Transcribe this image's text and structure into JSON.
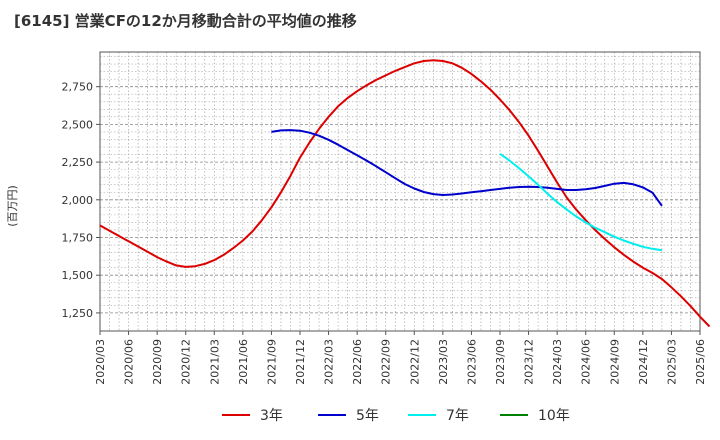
{
  "title": "[6145]  営業CFの12か月移動合計の平均値の推移",
  "y_unit_label": "(百万円)",
  "chart_data": {
    "type": "line",
    "title": "[6145]  営業CFの12か月移動合計の平均値の推移",
    "ylabel": "(百万円)",
    "xlabel": "",
    "ylim": [
      1130,
      2980
    ],
    "yticks": [
      1250,
      1500,
      1750,
      2000,
      2250,
      2500,
      2750
    ],
    "ytick_labels": [
      "1,250",
      "1,500",
      "1,750",
      "2,000",
      "2,250",
      "2,500",
      "2,750"
    ],
    "xticks": [
      "2020/03",
      "2020/06",
      "2020/09",
      "2020/12",
      "2021/03",
      "2021/06",
      "2021/09",
      "2021/12",
      "2022/03",
      "2022/06",
      "2022/09",
      "2022/12",
      "2023/03",
      "2023/06",
      "2023/09",
      "2023/12",
      "2024/03",
      "2024/06",
      "2024/09",
      "2024/12",
      "2025/03",
      "2025/06"
    ],
    "grid": true,
    "legend_position": "bottom",
    "series": [
      {
        "name": "3年",
        "color": "#dd0000",
        "start": "2020/03",
        "values": [
          1830,
          1795,
          1760,
          1725,
          1690,
          1655,
          1620,
          1590,
          1565,
          1555,
          1560,
          1575,
          1600,
          1635,
          1680,
          1730,
          1790,
          1865,
          1950,
          2050,
          2160,
          2280,
          2380,
          2470,
          2550,
          2620,
          2675,
          2720,
          2760,
          2795,
          2825,
          2855,
          2880,
          2905,
          2920,
          2925,
          2920,
          2905,
          2875,
          2835,
          2785,
          2730,
          2665,
          2595,
          2515,
          2425,
          2325,
          2220,
          2115,
          2015,
          1935,
          1865,
          1800,
          1740,
          1685,
          1635,
          1590,
          1550,
          1515,
          1475,
          1420,
          1360,
          1295,
          1225,
          1160
        ]
      },
      {
        "name": "5年",
        "color": "#0000cc",
        "start": "2021/09",
        "values": [
          2450,
          2460,
          2462,
          2458,
          2445,
          2425,
          2398,
          2365,
          2330,
          2295,
          2260,
          2222,
          2183,
          2143,
          2105,
          2075,
          2052,
          2038,
          2032,
          2035,
          2042,
          2050,
          2057,
          2065,
          2072,
          2080,
          2085,
          2087,
          2085,
          2080,
          2072,
          2065,
          2065,
          2070,
          2078,
          2092,
          2107,
          2112,
          2103,
          2082,
          2048,
          1960
        ]
      },
      {
        "name": "7年",
        "color": "#00eeee",
        "start": "2023/09",
        "values": [
          2305,
          2260,
          2210,
          2155,
          2100,
          2040,
          1985,
          1935,
          1890,
          1850,
          1815,
          1785,
          1755,
          1730,
          1708,
          1688,
          1675,
          1665
        ]
      },
      {
        "name": "10年",
        "color": "#008000",
        "start": "2025/03",
        "values": []
      }
    ]
  }
}
